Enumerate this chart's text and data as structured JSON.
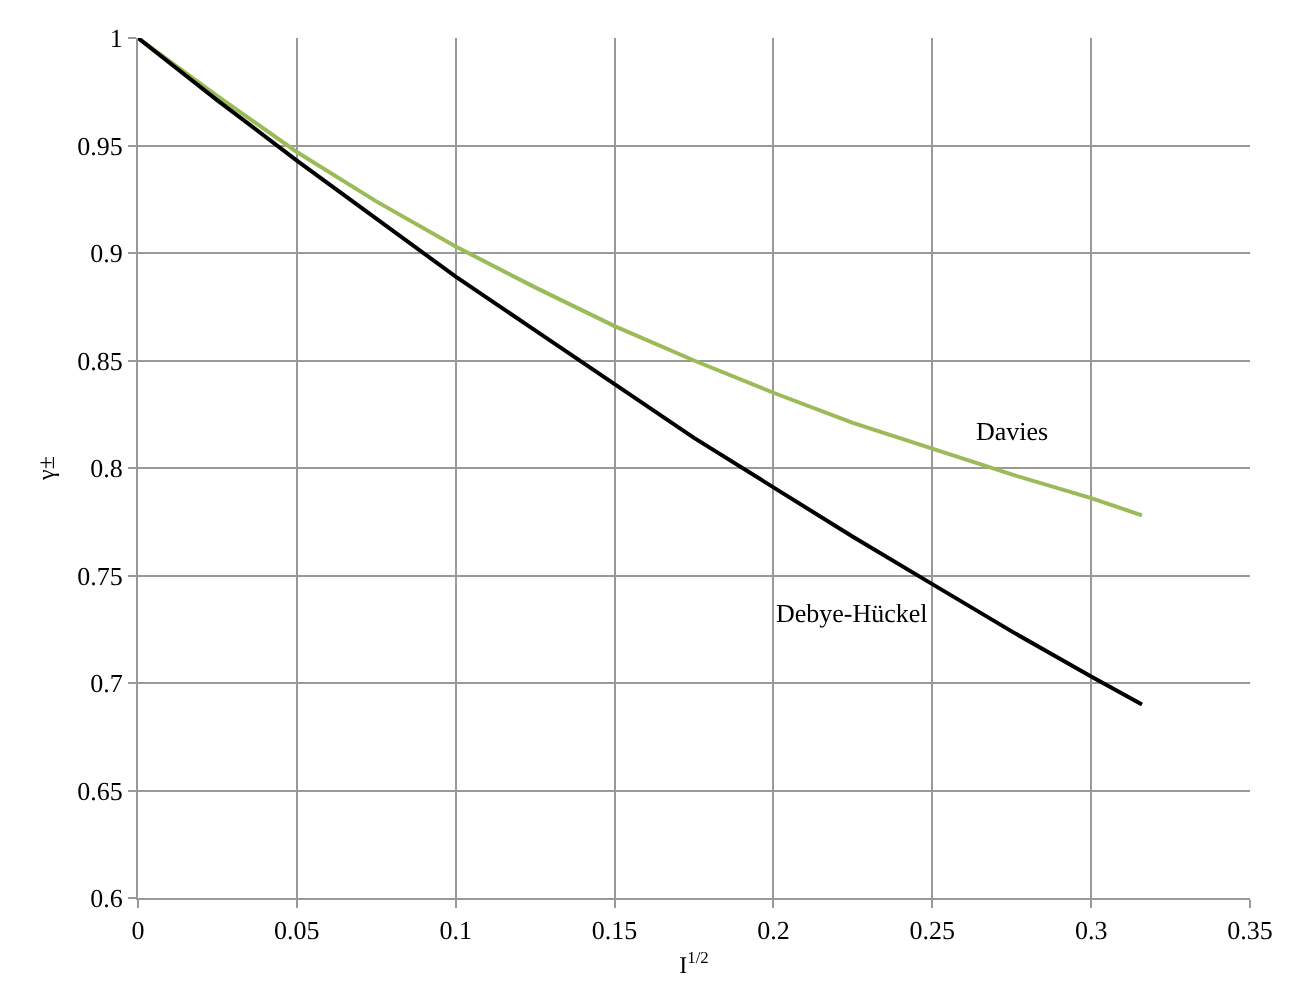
{
  "chart_data": {
    "type": "line",
    "xlabel": "I$^{1/2}$",
    "ylabel": "γ±",
    "x": [
      0,
      0.025,
      0.05,
      0.075,
      0.1,
      0.125,
      0.15,
      0.175,
      0.2,
      0.225,
      0.25,
      0.275,
      0.3,
      0.316
    ],
    "series": [
      {
        "name": "Davies",
        "color": "#9bbb59",
        "values": [
          1,
          0.973,
          0.947,
          0.924,
          0.903,
          0.884,
          0.866,
          0.85,
          0.835,
          0.821,
          0.809,
          0.797,
          0.786,
          0.778
        ]
      },
      {
        "name": "Debye-Hückel",
        "color": "#000000",
        "values": [
          1,
          0.971,
          0.943,
          0.916,
          0.889,
          0.864,
          0.839,
          0.814,
          0.791,
          0.768,
          0.746,
          0.724,
          0.703,
          0.69
        ]
      }
    ],
    "xlim": [
      0,
      0.35
    ],
    "xticks": [
      0,
      0.05,
      0.1,
      0.15,
      0.2,
      0.25,
      0.3,
      0.35
    ],
    "ylim": [
      0.6,
      1
    ],
    "yticks": [
      0.6,
      0.65,
      0.7,
      0.75,
      0.8,
      0.85,
      0.9,
      0.95,
      1
    ],
    "grid": true,
    "legend": false,
    "marker": "none",
    "line_style": "solid"
  }
}
